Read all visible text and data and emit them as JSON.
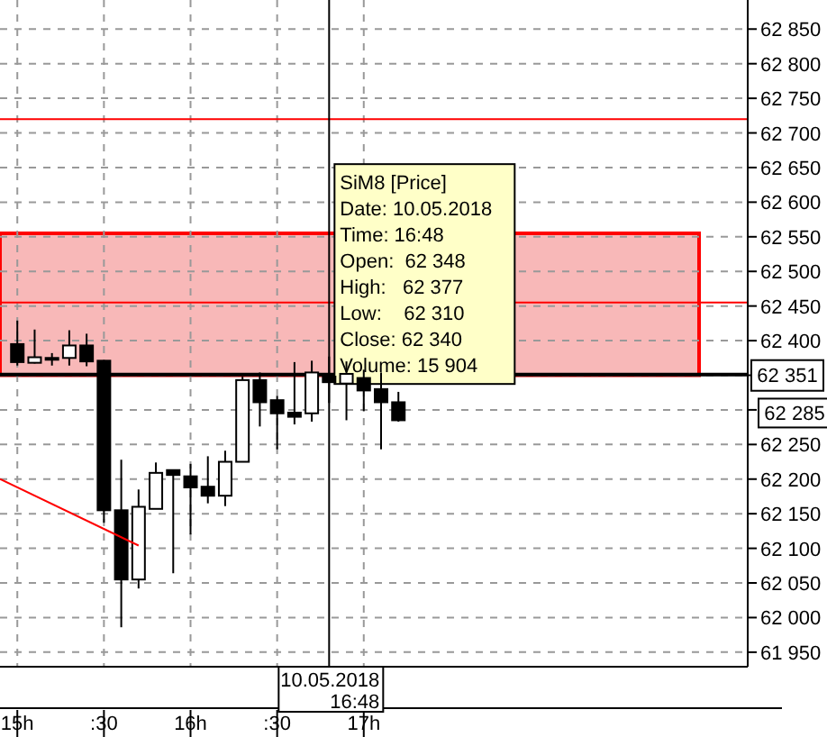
{
  "chart_data": {
    "type": "candlestick",
    "x": [
      "2018-05-10T15:00",
      "2018-05-10T15:06",
      "2018-05-10T15:12",
      "2018-05-10T15:18",
      "2018-05-10T15:24",
      "2018-05-10T15:30",
      "2018-05-10T15:36",
      "2018-05-10T15:42",
      "2018-05-10T15:48",
      "2018-05-10T15:54",
      "2018-05-10T16:00",
      "2018-05-10T16:06",
      "2018-05-10T16:12",
      "2018-05-10T16:18",
      "2018-05-10T16:24",
      "2018-05-10T16:30",
      "2018-05-10T16:36",
      "2018-05-10T16:42",
      "2018-05-10T16:48",
      "2018-05-10T16:54",
      "2018-05-10T17:00",
      "2018-05-10T17:06",
      "2018-05-10T17:12"
    ],
    "ohlc": [
      [
        62395,
        62429,
        62364,
        62369
      ],
      [
        62368,
        62416,
        62367,
        62376
      ],
      [
        62373,
        62382,
        62364,
        62375
      ],
      [
        62375,
        62415,
        62364,
        62393
      ],
      [
        62393,
        62410,
        62363,
        62370
      ],
      [
        62371,
        62372,
        62137,
        62155
      ],
      [
        62155,
        62228,
        61986,
        62055
      ],
      [
        62055,
        62185,
        62042,
        62160
      ],
      [
        62157,
        62224,
        62157,
        62209
      ],
      [
        62213,
        62214,
        62064,
        62206
      ],
      [
        62204,
        62222,
        62120,
        62188
      ],
      [
        62189,
        62233,
        62165,
        62176
      ],
      [
        62176,
        62241,
        62161,
        62225
      ],
      [
        62225,
        62348,
        62225,
        62343
      ],
      [
        62343,
        62354,
        62276,
        62311
      ],
      [
        62314,
        62320,
        62243,
        62295
      ],
      [
        62296,
        62369,
        62279,
        62290
      ],
      [
        62295,
        62371,
        62283,
        62354
      ],
      [
        62348,
        62377,
        62310,
        62340
      ],
      [
        62338,
        62370,
        62285,
        62352
      ],
      [
        62346,
        62358,
        62298,
        62328
      ],
      [
        62330,
        62354,
        62243,
        62311
      ],
      [
        62311,
        62326,
        62283,
        62285
      ]
    ],
    "colors": [
      "#000000",
      "#ffffff",
      "#ffffff",
      "#ffffff",
      "#000000",
      "#000000",
      "#000000",
      "#ffffff",
      "#ffffff",
      "#000000",
      "#000000",
      "#000000",
      "#ffffff",
      "#ffffff",
      "#000000",
      "#000000",
      "#000000",
      "#ffffff",
      "#000000",
      "#ffffff",
      "#000000",
      "#000000",
      "#000000"
    ],
    "series": [
      {
        "type": "line",
        "x": [
          "2018-05-10T14:54",
          "2018-05-10T15:42"
        ],
        "values": [
          62200,
          62104
        ],
        "color": "#ff0000"
      }
    ],
    "xlim": [
      "2018-05-10T14:54",
      "2018-05-10T19:13"
    ],
    "xticks": [
      {
        "value": "2018-05-10T15:00",
        "label": "15h"
      },
      {
        "value": "2018-05-10T15:30",
        "label": ":30"
      },
      {
        "value": "2018-05-10T16:00",
        "label": "16h"
      },
      {
        "value": "2018-05-10T16:30",
        "label": ":30"
      },
      {
        "value": "2018-05-10T17:00",
        "label": "17h"
      }
    ],
    "ylim": [
      61929,
      62892
    ],
    "yticks": [
      {
        "value": 61950,
        "label": "61 950"
      },
      {
        "value": 62000,
        "label": "62 000"
      },
      {
        "value": 62050,
        "label": "62 050"
      },
      {
        "value": 62100,
        "label": "62 100"
      },
      {
        "value": 62150,
        "label": "62 150"
      },
      {
        "value": 62200,
        "label": "62 200"
      },
      {
        "value": 62250,
        "label": "62 250"
      },
      {
        "value": 62300,
        "label": null
      },
      {
        "value": 62350,
        "label": null
      },
      {
        "value": 62400,
        "label": "62 400"
      },
      {
        "value": 62450,
        "label": "62 450"
      },
      {
        "value": 62500,
        "label": "62 500"
      },
      {
        "value": 62550,
        "label": "62 550"
      },
      {
        "value": 62600,
        "label": "62 600"
      },
      {
        "value": 62650,
        "label": "62 650"
      },
      {
        "value": 62700,
        "label": "62 700"
      },
      {
        "value": 62750,
        "label": "62 750"
      },
      {
        "value": 62800,
        "label": "62 800"
      },
      {
        "value": 62850,
        "label": "62 850"
      }
    ],
    "grid": true,
    "bands": [
      {
        "axis": "y",
        "from": 62350,
        "to": 62555,
        "color": "#f8b8b8"
      }
    ],
    "ref_lines": [
      {
        "axis": "y",
        "value": 62720,
        "color": "#ff0000"
      },
      {
        "axis": "y",
        "value": 62455,
        "color": "#ff0000"
      },
      {
        "axis": "y",
        "value": 62351,
        "label": "62 351",
        "color": "#000000"
      },
      {
        "axis": "x",
        "value": "2018-05-10T16:48",
        "label": "10.05.2018 16:48",
        "color": "#000000"
      }
    ],
    "annotations": [
      "62 285",
      {
        "text": "SiM8 [Price]\nDate: 10.05.2018\nTime: 16:48\nOpen:  62 348\nHigh:   62 377\nLow:    62 310\nClose: 62 340\nVolume: 15 904",
        "x": "2018-05-10T16:48",
        "y": 62340
      }
    ]
  }
}
